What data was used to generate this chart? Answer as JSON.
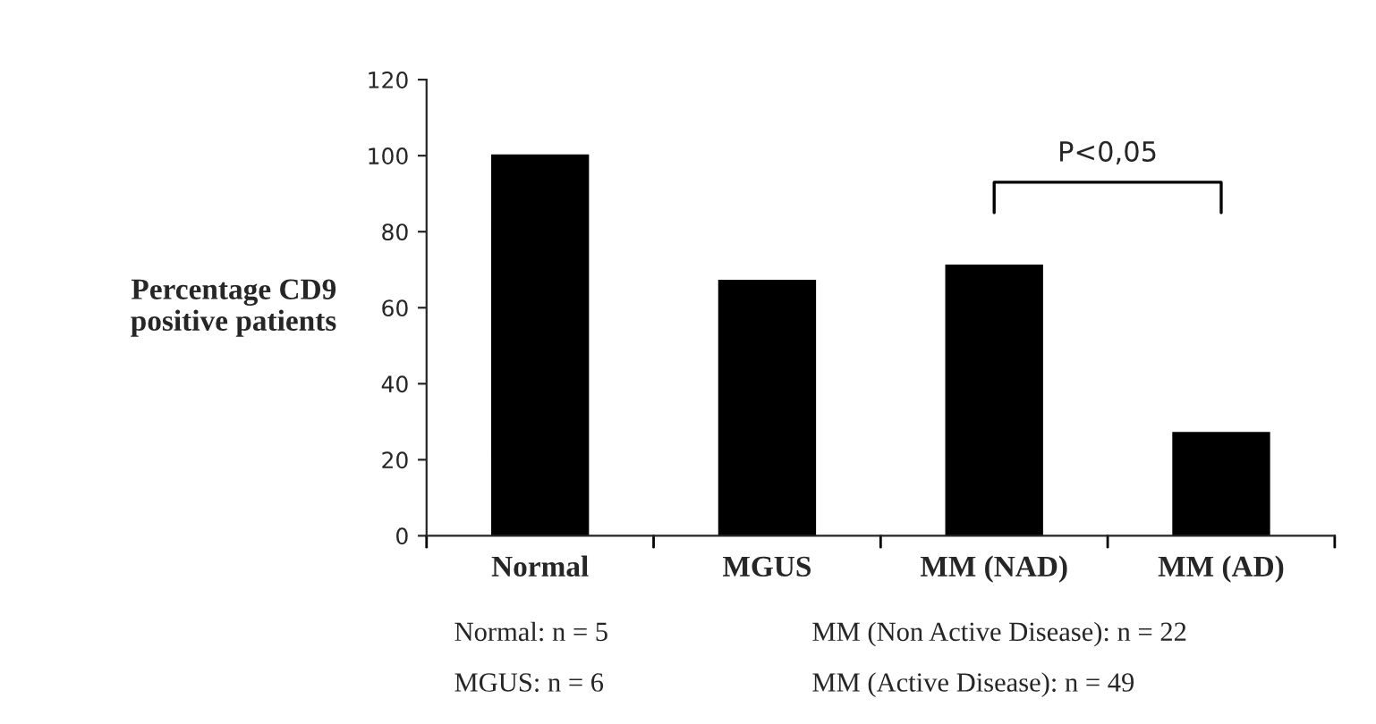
{
  "chart_data": {
    "type": "bar",
    "ylabel": "Percentage CD9\npositive patients",
    "categories": [
      "Normal",
      "MGUS",
      "MM (NAD)",
      "MM (AD)"
    ],
    "values": [
      100,
      67,
      71,
      27
    ],
    "color": "#000000",
    "ylim": [
      0,
      120
    ],
    "yticks": [
      0,
      20,
      40,
      60,
      80,
      100,
      120
    ],
    "grid": false,
    "legend": false,
    "annotations": [
      "P<0,05",
      "Normal: n = 5",
      "MGUS: n = 6",
      "MM (Non Active Disease): n = 22",
      "MM (Active Disease): n = 49"
    ]
  }
}
